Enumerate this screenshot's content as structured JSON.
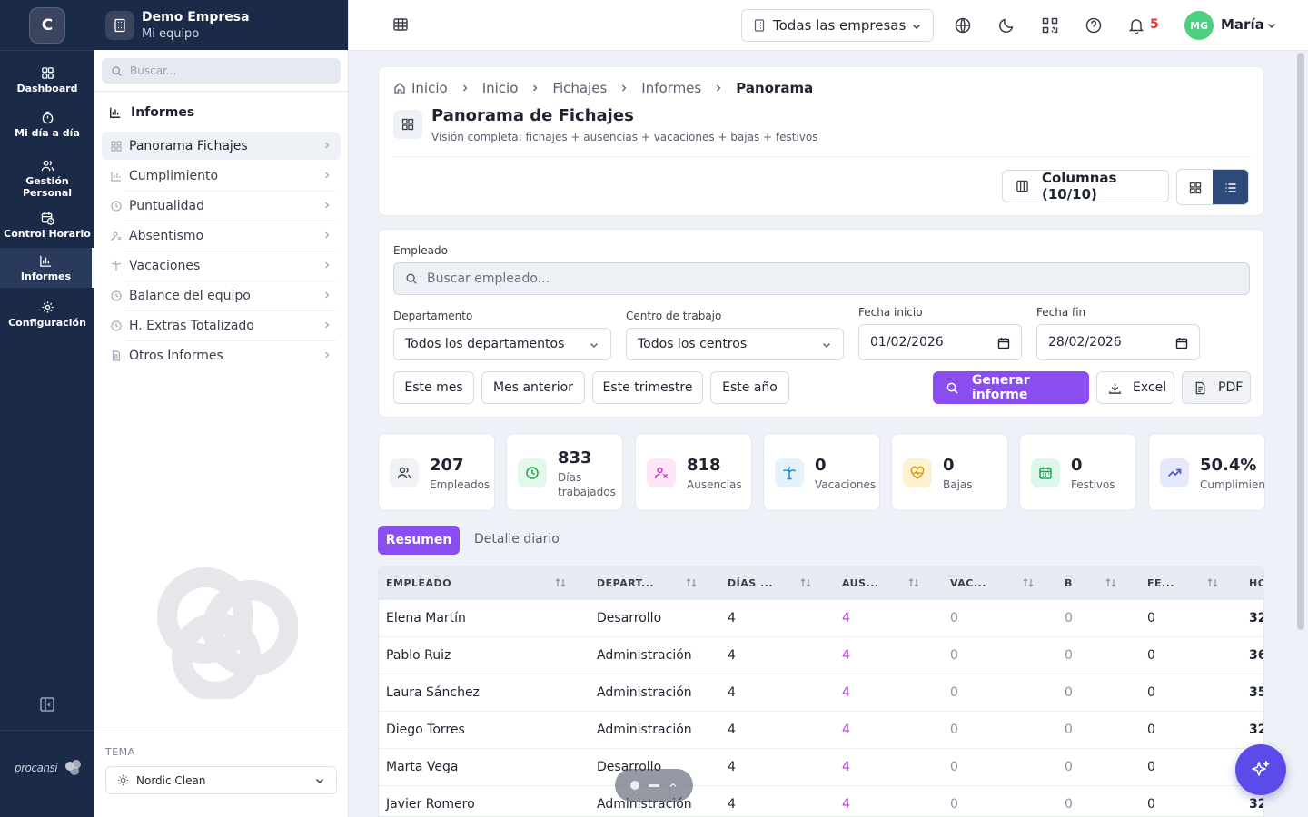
{
  "rail": {
    "logo_letter": "C",
    "items": [
      {
        "label": "Dashboard",
        "icon": "dashboard-icon"
      },
      {
        "label": "Mi día a día",
        "icon": "stopwatch-icon"
      },
      {
        "label": "Gestión Personal",
        "icon": "users-icon"
      },
      {
        "label": "Control Horario",
        "icon": "calendar-clock-icon"
      },
      {
        "label": "Informes",
        "icon": "bar-chart-icon",
        "active": true
      },
      {
        "label": "Configuración",
        "icon": "gear-icon"
      }
    ],
    "brand": "procansi"
  },
  "sidebar": {
    "company": "Demo Empresa",
    "team": "Mi equipo",
    "search_placeholder": "Buscar...",
    "section_title": "Informes",
    "items": [
      {
        "label": "Panorama Fichajes",
        "icon": "grid-icon",
        "active": true
      },
      {
        "label": "Cumplimiento",
        "icon": "bar-chart-icon"
      },
      {
        "label": "Puntualidad",
        "icon": "clock-icon"
      },
      {
        "label": "Absentismo",
        "icon": "user-x-icon"
      },
      {
        "label": "Vacaciones",
        "icon": "palm-tree-icon"
      },
      {
        "label": "Balance del equipo",
        "icon": "clock-icon"
      },
      {
        "label": "H. Extras Totalizado",
        "icon": "clock-plus-icon"
      },
      {
        "label": "Otros Informes",
        "icon": "document-icon"
      }
    ],
    "theme_label": "TEMA",
    "theme_value": "Nordic Clean"
  },
  "topbar": {
    "company_select": "Todas las empresas",
    "notifications": "5",
    "avatar_initials": "MG",
    "user_name": "María"
  },
  "header": {
    "breadcrumbs": [
      "Inicio",
      "Inicio",
      "Fichajes",
      "Informes",
      "Panorama"
    ],
    "title": "Panorama de Fichajes",
    "subtitle": "Visión completa: fichajes + ausencias + vacaciones + bajas + festivos",
    "columns_button": "Columnas (10/10)"
  },
  "filters": {
    "employee_label": "Empleado",
    "employee_placeholder": "Buscar empleado...",
    "department_label": "Departamento",
    "department_value": "Todos los departamentos",
    "center_label": "Centro de trabajo",
    "center_value": "Todos los centros",
    "start_label": "Fecha inicio",
    "start_value": "01/02/2026",
    "end_label": "Fecha fin",
    "end_value": "28/02/2026",
    "periods": [
      "Este mes",
      "Mes anterior",
      "Este trimestre",
      "Este año"
    ],
    "generate": "Generar informe",
    "excel": "Excel",
    "pdf": "PDF"
  },
  "stats": [
    {
      "value": "207",
      "label": "Empleados",
      "icon": "users-icon",
      "color": "#f0f2f6",
      "icon_color": "#3a3f4b"
    },
    {
      "value": "833",
      "label": "Días trabajados",
      "icon": "clock-icon",
      "color": "#e3f7ea",
      "icon_color": "#22a355"
    },
    {
      "value": "818",
      "label": "Ausencias",
      "icon": "user-x-icon",
      "color": "#fbe6f7",
      "icon_color": "#c23bb8"
    },
    {
      "value": "0",
      "label": "Vacaciones",
      "icon": "palm-tree-icon",
      "color": "#e3f2fb",
      "icon_color": "#1b8fc9"
    },
    {
      "value": "0",
      "label": "Bajas",
      "icon": "heart-pulse-icon",
      "color": "#fdf1cf",
      "icon_color": "#d79a10"
    },
    {
      "value": "0",
      "label": "Festivos",
      "icon": "calendar-icon",
      "color": "#dff6ea",
      "icon_color": "#1ea05a"
    },
    {
      "value": "50.4%",
      "label": "Cumplimiento",
      "icon": "trend-up-icon",
      "color": "#e6e8fb",
      "icon_color": "#4b52d8"
    }
  ],
  "tabs": {
    "summary": "Resumen",
    "daily": "Detalle diario"
  },
  "table": {
    "headers": [
      "EMPLEADO",
      "DEPART...",
      "DÍAS ...",
      "AUS...",
      "VAC...",
      "B",
      "FE...",
      "HO"
    ],
    "rows": [
      [
        "Elena Martín",
        "Desarrollo",
        "4",
        "4",
        "0",
        "0",
        "0",
        "32"
      ],
      [
        "Pablo Ruiz",
        "Administración",
        "4",
        "4",
        "0",
        "0",
        "0",
        "36"
      ],
      [
        "Laura Sánchez",
        "Administración",
        "4",
        "4",
        "0",
        "0",
        "0",
        "35"
      ],
      [
        "Diego Torres",
        "Administración",
        "4",
        "4",
        "0",
        "0",
        "0",
        "32"
      ],
      [
        "Marta Vega",
        "Desarrollo",
        "4",
        "4",
        "0",
        "0",
        "0",
        ""
      ],
      [
        "Javier Romero",
        "Administración",
        "4",
        "4",
        "0",
        "0",
        "0",
        "32"
      ]
    ]
  },
  "colors": {
    "accent": "#8a4ef0",
    "navy": "#1b2a47",
    "ai": "#5b4be8"
  }
}
